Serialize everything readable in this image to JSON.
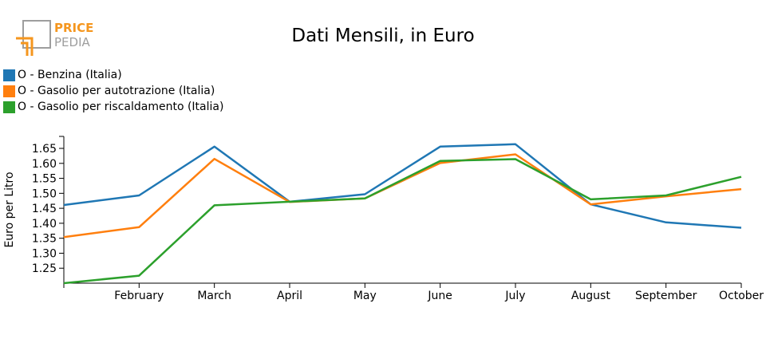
{
  "logo": {
    "word_top": "PRICE",
    "word_bottom": "PEDIA",
    "colors": {
      "orange": "#f5961e",
      "gray": "#9e9e9e"
    }
  },
  "chart_data": {
    "type": "line",
    "title": "Dati Mensili, in Euro",
    "xlabel": "",
    "ylabel": "Euro per Litro",
    "categories": [
      "",
      "February",
      "March",
      "April",
      "May",
      "June",
      "July",
      "August",
      "September",
      "October"
    ],
    "y_ticks": [
      "1.25",
      "1.30",
      "1.35",
      "1.40",
      "1.45",
      "1.50",
      "1.55",
      "1.60",
      "1.65"
    ],
    "ylim": [
      1.2,
      1.69
    ],
    "grid": false,
    "legend_position": "top-left",
    "series": [
      {
        "name": "O - Benzina (Italia)",
        "color": "#1f77b4",
        "values": [
          1.461,
          1.493,
          1.656,
          1.472,
          1.497,
          1.656,
          1.664,
          1.463,
          1.403,
          1.385
        ]
      },
      {
        "name": "O - Gasolio per autotrazione (Italia)",
        "color": "#ff7f0e",
        "values": [
          1.354,
          1.387,
          1.615,
          1.471,
          1.483,
          1.601,
          1.63,
          1.463,
          1.49,
          1.514
        ]
      },
      {
        "name": "O - Gasolio per riscaldamento (Italia)",
        "color": "#2ca02c",
        "values": [
          1.2,
          1.225,
          1.46,
          1.472,
          1.483,
          1.608,
          1.614,
          1.48,
          1.493,
          1.555
        ]
      }
    ]
  }
}
